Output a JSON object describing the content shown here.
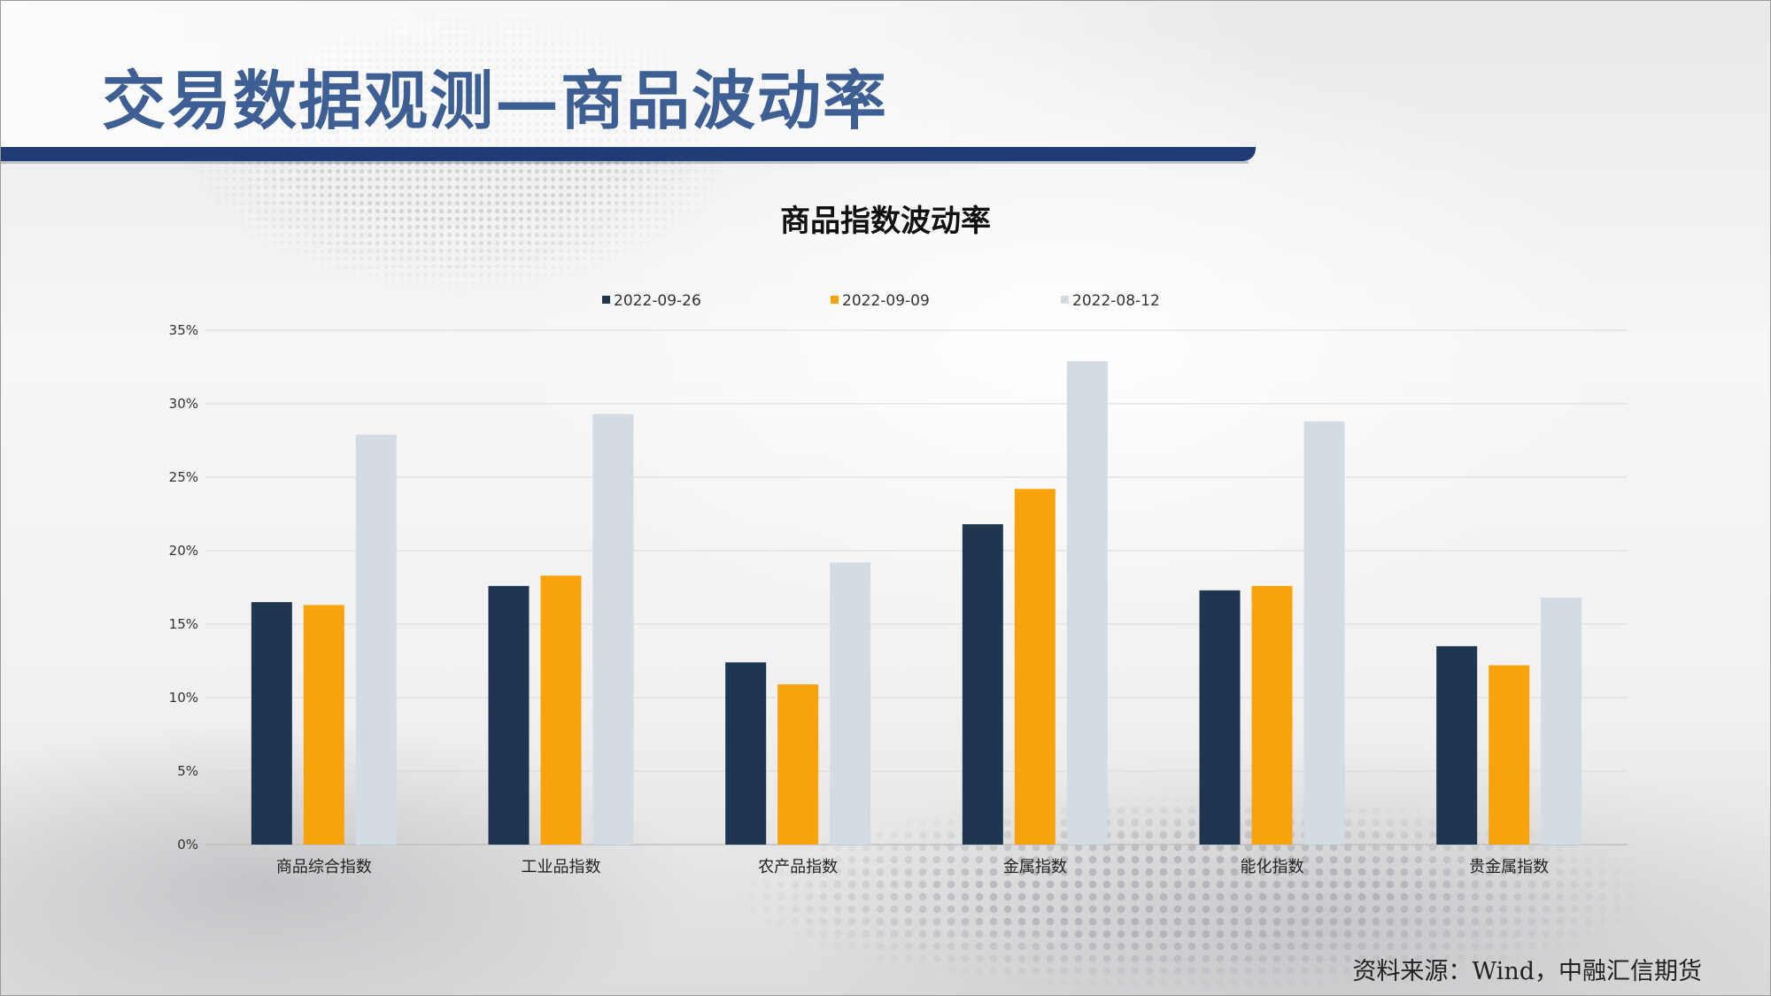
{
  "page_title": "交易数据观测—商品波动率",
  "source_note": "资料来源：Wind，中融汇信期货",
  "chart_data": {
    "type": "bar",
    "title": "商品指数波动率",
    "categories": [
      "商品综合指数",
      "工业品指数",
      "农产品指数",
      "金属指数",
      "能化指数",
      "贵金属指数"
    ],
    "series": [
      {
        "name": "2022-09-26",
        "color": "#1f3650",
        "values": [
          16.5,
          17.6,
          12.4,
          21.8,
          17.3,
          13.5
        ]
      },
      {
        "name": "2022-09-09",
        "color": "#f9a30c",
        "values": [
          16.3,
          18.3,
          10.9,
          24.2,
          17.6,
          12.2
        ]
      },
      {
        "name": "2022-08-12",
        "color": "#d3dbe3",
        "values": [
          27.9,
          29.3,
          19.2,
          32.9,
          28.8,
          16.8
        ]
      }
    ],
    "yticks": [
      "0%",
      "5%",
      "10%",
      "15%",
      "20%",
      "25%",
      "30%",
      "35%"
    ],
    "ylim": [
      0,
      35
    ],
    "legend_position": "top",
    "grid": true
  }
}
